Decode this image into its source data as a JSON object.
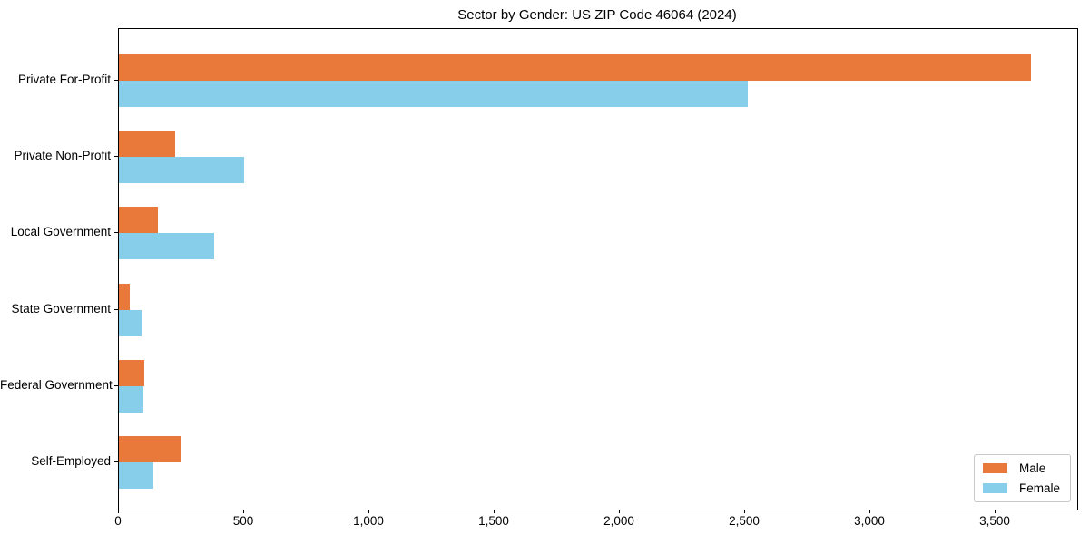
{
  "figure": {
    "title": "Sector by Gender: US ZIP Code 46064 (2024)"
  },
  "chart_data": {
    "type": "bar",
    "orientation": "horizontal",
    "title": "Sector by Gender: US ZIP Code 46064 (2024)",
    "categories": [
      "Private For-Profit",
      "Private Non-Profit",
      "Local Government",
      "State Government",
      "Federal Government",
      "Self-Employed"
    ],
    "series": [
      {
        "name": "Male",
        "color": "#e8793b",
        "values": [
          3640,
          225,
          155,
          43,
          100,
          250
        ]
      },
      {
        "name": "Female",
        "color": "#87ceeb",
        "values": [
          2510,
          500,
          380,
          90,
          97,
          138
        ]
      }
    ],
    "xlabel": "",
    "ylabel": "",
    "xlim": [
      0,
      3826
    ],
    "xticks": [
      0,
      500,
      1000,
      1500,
      2000,
      2500,
      3000,
      3500
    ],
    "xtick_labels": [
      "0",
      "500",
      "1,000",
      "1,500",
      "2,000",
      "2,500",
      "3,000",
      "3,500"
    ],
    "grid": false,
    "legend": {
      "position": "lower-right"
    }
  },
  "colors": {
    "male": "#e8793b",
    "female": "#87ceeb",
    "spine": "#000000",
    "legend_border": "#c8c8c8",
    "background": "#ffffff"
  }
}
